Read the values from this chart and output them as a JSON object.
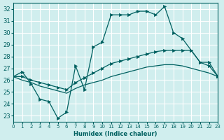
{
  "xlabel": "Humidex (Indice chaleur)",
  "ylabel": "",
  "bg_color": "#d0eeee",
  "grid_color": "#ffffff",
  "line_color": "#006060",
  "xlim": [
    0,
    23
  ],
  "ylim": [
    22.5,
    32.5
  ],
  "xticks": [
    0,
    1,
    2,
    3,
    4,
    5,
    6,
    7,
    8,
    9,
    10,
    11,
    12,
    13,
    14,
    15,
    16,
    17,
    18,
    19,
    20,
    21,
    22,
    23
  ],
  "yticks": [
    23,
    24,
    25,
    26,
    27,
    28,
    29,
    30,
    31,
    32
  ],
  "line1_x": [
    0,
    1,
    2,
    3,
    4,
    5,
    6,
    7,
    8,
    9,
    10,
    11,
    12,
    13,
    14,
    15,
    16,
    17,
    18,
    19,
    20,
    21,
    22,
    23
  ],
  "line1_y": [
    26.3,
    26.7,
    25.7,
    24.4,
    24.2,
    22.8,
    23.3,
    27.2,
    25.2,
    28.8,
    29.2,
    31.5,
    31.5,
    31.5,
    31.8,
    31.8,
    31.5,
    32.2,
    30.0,
    29.5,
    28.5,
    27.5,
    27.5,
    26.3
  ],
  "line2_x": [
    0,
    1,
    2,
    3,
    4,
    5,
    6,
    7,
    8,
    9,
    10,
    11,
    12,
    13,
    14,
    15,
    16,
    17,
    18,
    19,
    20,
    21,
    22,
    23
  ],
  "line2_y": [
    26.3,
    26.3,
    26.0,
    25.8,
    25.6,
    25.4,
    25.2,
    25.8,
    26.2,
    26.6,
    27.0,
    27.4,
    27.6,
    27.8,
    28.0,
    28.2,
    28.4,
    28.5,
    28.5,
    28.5,
    28.5,
    27.5,
    27.2,
    26.3
  ],
  "line3_x": [
    0,
    1,
    2,
    3,
    4,
    5,
    6,
    7,
    8,
    9,
    10,
    11,
    12,
    13,
    14,
    15,
    16,
    17,
    18,
    19,
    20,
    21,
    22,
    23
  ],
  "line3_y": [
    26.3,
    26.0,
    25.8,
    25.5,
    25.3,
    25.1,
    24.9,
    25.3,
    25.6,
    25.8,
    26.0,
    26.3,
    26.5,
    26.7,
    26.9,
    27.1,
    27.2,
    27.3,
    27.3,
    27.2,
    27.0,
    26.8,
    26.6,
    26.3
  ]
}
